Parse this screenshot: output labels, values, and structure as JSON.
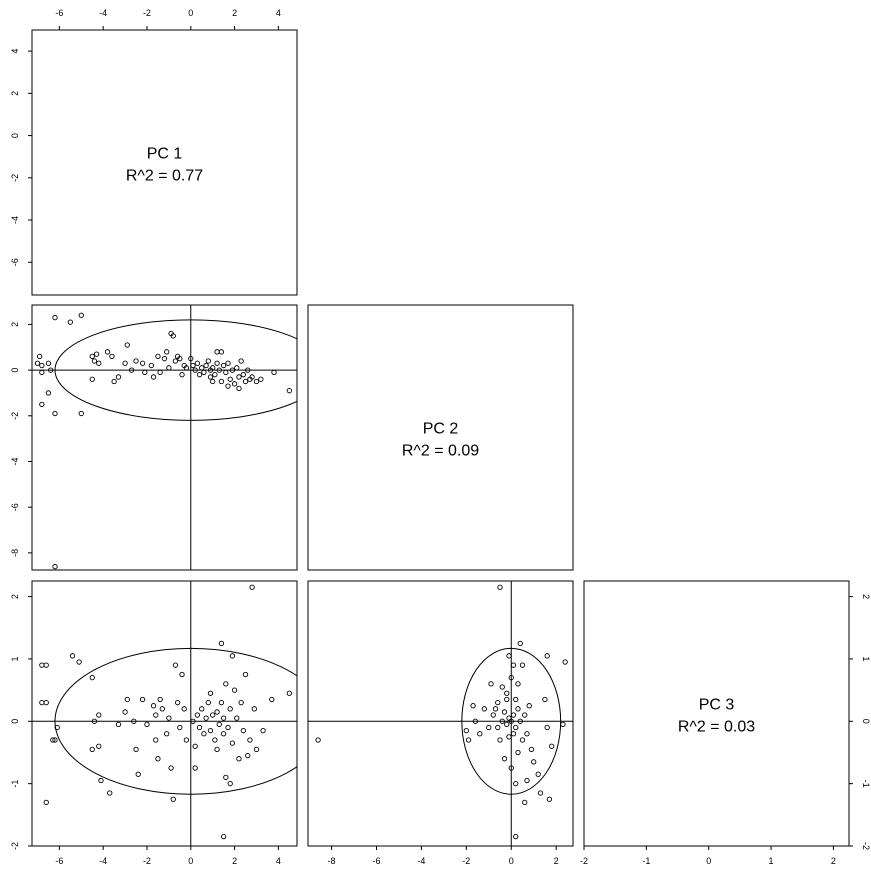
{
  "chart_data": {
    "type": "scatter",
    "title": "",
    "panels": {
      "diagonal": [
        {
          "name": "PC 1",
          "r2": "R^2 = 0.77"
        },
        {
          "name": "PC 2",
          "r2": "R^2 = 0.09"
        },
        {
          "name": "PC 3",
          "r2": "R^2 = 0.03"
        }
      ],
      "pc1_vs_pc2": {
        "x_axis": "PC 1",
        "y_axis": "PC 2",
        "xlim": [
          -7.0,
          4.8
        ],
        "ylim": [
          -8.7,
          2.8
        ],
        "ellipse": {
          "cx": 0,
          "cy": 0,
          "rx": 6.2,
          "ry": 2.2
        },
        "points": [
          [
            -7.0,
            0.3
          ],
          [
            -6.9,
            0.6
          ],
          [
            -6.8,
            0.2
          ],
          [
            -6.5,
            0.3
          ],
          [
            -6.8,
            -0.1
          ],
          [
            -6.5,
            -1.0
          ],
          [
            -6.4,
            0.0
          ],
          [
            -6.2,
            2.3
          ],
          [
            -6.2,
            -1.9
          ],
          [
            -5.5,
            2.1
          ],
          [
            -5.0,
            2.4
          ],
          [
            -5.0,
            -1.9
          ],
          [
            -6.8,
            -1.5
          ],
          [
            -6.2,
            -8.6
          ],
          [
            -4.5,
            0.6
          ],
          [
            -4.4,
            0.4
          ],
          [
            -4.3,
            0.7
          ],
          [
            -4.2,
            0.3
          ],
          [
            -4.5,
            -0.4
          ],
          [
            -3.8,
            0.8
          ],
          [
            -3.6,
            0.6
          ],
          [
            -3.5,
            -0.5
          ],
          [
            -3.3,
            -0.3
          ],
          [
            -3.0,
            0.3
          ],
          [
            -2.9,
            1.1
          ],
          [
            -2.7,
            0.0
          ],
          [
            -2.5,
            0.4
          ],
          [
            -2.2,
            0.3
          ],
          [
            -2.1,
            -0.1
          ],
          [
            -1.8,
            0.2
          ],
          [
            -1.7,
            -0.3
          ],
          [
            -1.5,
            0.6
          ],
          [
            -1.4,
            -0.1
          ],
          [
            -1.2,
            0.5
          ],
          [
            -1.1,
            0.8
          ],
          [
            -1.0,
            0.1
          ],
          [
            -0.9,
            1.6
          ],
          [
            -0.8,
            1.5
          ],
          [
            -0.7,
            0.4
          ],
          [
            -0.6,
            0.6
          ],
          [
            -0.5,
            0.5
          ],
          [
            -0.4,
            -0.2
          ],
          [
            -0.3,
            0.2
          ],
          [
            -0.2,
            0.1
          ],
          [
            0.0,
            0.5
          ],
          [
            0.1,
            0.2
          ],
          [
            0.2,
            0.0
          ],
          [
            0.3,
            0.3
          ],
          [
            0.4,
            -0.2
          ],
          [
            0.5,
            0.1
          ],
          [
            0.6,
            -0.1
          ],
          [
            0.7,
            0.2
          ],
          [
            0.8,
            0.4
          ],
          [
            0.9,
            -0.3
          ],
          [
            1.0,
            0.1
          ],
          [
            1.1,
            -0.2
          ],
          [
            1.2,
            0.3
          ],
          [
            1.3,
            0.0
          ],
          [
            1.4,
            -0.5
          ],
          [
            1.4,
            0.8
          ],
          [
            1.5,
            0.2
          ],
          [
            1.6,
            -0.1
          ],
          [
            1.7,
            0.3
          ],
          [
            1.8,
            -0.4
          ],
          [
            1.9,
            0.0
          ],
          [
            2.0,
            -0.6
          ],
          [
            2.1,
            0.1
          ],
          [
            2.2,
            -0.3
          ],
          [
            2.3,
            0.4
          ],
          [
            2.4,
            -0.2
          ],
          [
            2.5,
            -0.5
          ],
          [
            2.6,
            0.0
          ],
          [
            2.7,
            -0.4
          ],
          [
            2.8,
            -0.3
          ],
          [
            3.0,
            -0.5
          ],
          [
            3.2,
            -0.4
          ],
          [
            1.0,
            -0.5
          ],
          [
            1.2,
            0.8
          ],
          [
            0.9,
            0.0
          ],
          [
            1.7,
            -0.7
          ],
          [
            2.2,
            -0.8
          ],
          [
            3.8,
            -0.1
          ],
          [
            4.5,
            -0.9
          ]
        ]
      },
      "pc1_vs_pc3": {
        "x_axis": "PC 1",
        "y_axis": "PC 3",
        "xlim": [
          -7.2,
          4.8
        ],
        "ylim": [
          -2.0,
          2.3
        ],
        "ellipse": {
          "cx": 0,
          "cy": 0,
          "rx": 6.2,
          "ry": 1.17
        },
        "points": [
          [
            -6.8,
            0.9
          ],
          [
            -6.6,
            0.9
          ],
          [
            -6.8,
            0.3
          ],
          [
            -6.6,
            0.3
          ],
          [
            -6.3,
            -0.3
          ],
          [
            -6.2,
            -0.3
          ],
          [
            -6.1,
            -0.1
          ],
          [
            -6.6,
            -1.3
          ],
          [
            -5.4,
            1.05
          ],
          [
            -5.1,
            0.95
          ],
          [
            -4.5,
            0.7
          ],
          [
            -4.4,
            0.0
          ],
          [
            -4.5,
            -0.45
          ],
          [
            -4.2,
            0.1
          ],
          [
            -4.2,
            -0.4
          ],
          [
            -4.1,
            -0.95
          ],
          [
            -3.7,
            -1.15
          ],
          [
            -3.3,
            -0.05
          ],
          [
            -3.0,
            0.15
          ],
          [
            -2.9,
            0.35
          ],
          [
            -2.6,
            0.0
          ],
          [
            -2.5,
            -0.45
          ],
          [
            -2.4,
            -0.85
          ],
          [
            -2.2,
            0.35
          ],
          [
            -2.0,
            -0.05
          ],
          [
            -1.7,
            0.25
          ],
          [
            -1.6,
            0.1
          ],
          [
            -1.6,
            -0.3
          ],
          [
            -1.5,
            -0.6
          ],
          [
            -1.4,
            0.35
          ],
          [
            -1.3,
            0.2
          ],
          [
            -1.1,
            -0.2
          ],
          [
            -1.0,
            0.05
          ],
          [
            -0.9,
            -0.75
          ],
          [
            -0.8,
            -1.25
          ],
          [
            -0.7,
            0.9
          ],
          [
            -0.6,
            0.3
          ],
          [
            -0.5,
            -0.1
          ],
          [
            -0.4,
            0.75
          ],
          [
            -0.3,
            0.2
          ],
          [
            -0.2,
            -0.3
          ],
          [
            0.1,
            0.0
          ],
          [
            0.2,
            -0.4
          ],
          [
            0.3,
            0.1
          ],
          [
            0.4,
            -0.1
          ],
          [
            0.5,
            0.2
          ],
          [
            0.6,
            -0.2
          ],
          [
            0.7,
            0.05
          ],
          [
            0.8,
            0.3
          ],
          [
            0.9,
            -0.15
          ],
          [
            1.0,
            0.1
          ],
          [
            1.1,
            -0.3
          ],
          [
            1.2,
            0.15
          ],
          [
            1.3,
            -0.05
          ],
          [
            1.4,
            1.25
          ],
          [
            1.4,
            0.3
          ],
          [
            1.5,
            -0.2
          ],
          [
            1.5,
            0.05
          ],
          [
            1.6,
            0.6
          ],
          [
            1.7,
            -0.1
          ],
          [
            1.8,
            0.2
          ],
          [
            1.8,
            -1.0
          ],
          [
            1.9,
            -0.35
          ],
          [
            2.0,
            0.5
          ],
          [
            2.1,
            0.05
          ],
          [
            2.2,
            -0.6
          ],
          [
            2.3,
            0.3
          ],
          [
            2.4,
            -0.15
          ],
          [
            2.5,
            0.75
          ],
          [
            2.7,
            -0.3
          ],
          [
            2.8,
            2.15
          ],
          [
            2.9,
            0.2
          ],
          [
            3.0,
            -0.45
          ],
          [
            3.3,
            -0.15
          ],
          [
            3.7,
            0.35
          ],
          [
            4.5,
            0.45
          ],
          [
            1.5,
            -1.85
          ],
          [
            1.2,
            -0.45
          ],
          [
            0.9,
            0.45
          ],
          [
            2.6,
            -0.55
          ],
          [
            0.2,
            -0.75
          ],
          [
            1.9,
            1.05
          ],
          [
            1.6,
            -0.9
          ]
        ]
      },
      "pc2_vs_pc3": {
        "x_axis": "PC 2",
        "y_axis": "PC 3",
        "xlim": [
          -9.0,
          2.8
        ],
        "ylim": [
          -2.0,
          2.3
        ],
        "ellipse": {
          "cx": 0,
          "cy": 0,
          "rx": 2.2,
          "ry": 1.17
        },
        "points": [
          [
            -8.6,
            -0.3
          ],
          [
            -0.5,
            2.15
          ],
          [
            0.2,
            -1.85
          ],
          [
            2.4,
            0.95
          ],
          [
            2.3,
            -0.05
          ],
          [
            1.6,
            1.05
          ],
          [
            1.7,
            -1.25
          ],
          [
            1.3,
            -1.15
          ],
          [
            1.2,
            -0.85
          ],
          [
            1.0,
            -0.65
          ],
          [
            0.9,
            -0.45
          ],
          [
            0.7,
            -0.95
          ],
          [
            0.6,
            -1.3
          ],
          [
            0.5,
            0.9
          ],
          [
            0.4,
            1.25
          ],
          [
            0.3,
            0.6
          ],
          [
            -0.2,
            0.35
          ],
          [
            -0.4,
            0.55
          ],
          [
            -0.6,
            0.3
          ],
          [
            -0.8,
            0.1
          ],
          [
            -1.0,
            -0.1
          ],
          [
            -1.2,
            0.2
          ],
          [
            -1.4,
            -0.2
          ],
          [
            -1.6,
            0.0
          ],
          [
            -1.9,
            -0.3
          ],
          [
            -2.0,
            -0.15
          ],
          [
            -1.7,
            0.25
          ],
          [
            -0.9,
            0.6
          ],
          [
            1.5,
            0.35
          ],
          [
            1.6,
            -0.1
          ],
          [
            1.8,
            -0.4
          ],
          [
            0.2,
            -1.0
          ],
          [
            0.0,
            0.0
          ],
          [
            0.1,
            0.1
          ],
          [
            -0.1,
            0.05
          ],
          [
            0.2,
            -0.1
          ],
          [
            -0.2,
            -0.05
          ],
          [
            0.3,
            0.2
          ],
          [
            -0.3,
            0.15
          ],
          [
            0.1,
            -0.2
          ],
          [
            -0.1,
            -0.25
          ],
          [
            0.4,
            0.0
          ],
          [
            -0.4,
            0.0
          ],
          [
            0.2,
            0.35
          ],
          [
            -0.2,
            0.45
          ],
          [
            0.0,
            0.7
          ],
          [
            0.1,
            0.9
          ],
          [
            -0.1,
            1.05
          ],
          [
            0.5,
            -0.3
          ],
          [
            -0.5,
            -0.3
          ],
          [
            0.3,
            -0.5
          ],
          [
            -0.3,
            -0.6
          ],
          [
            0.0,
            -0.75
          ],
          [
            0.6,
            0.1
          ],
          [
            -0.6,
            -0.1
          ],
          [
            0.8,
            0.25
          ],
          [
            0.7,
            -0.2
          ],
          [
            -0.7,
            0.2
          ]
        ]
      }
    },
    "ticks": {
      "pc1": [
        "-6",
        "-4",
        "-2",
        "0",
        "2",
        "4"
      ],
      "pc2": [
        "-8",
        "-6",
        "-4",
        "-2",
        "0",
        "2"
      ],
      "pc3": [
        "-2",
        "-1",
        "0",
        "1",
        "2"
      ],
      "pc1_left": [
        "-6",
        "-4",
        "-2",
        "0",
        "2",
        "4"
      ],
      "pc2_left": [
        "-8",
        "-6",
        "-4",
        "-2",
        "0",
        "2"
      ],
      "pc3_left": [
        "-2",
        "-1",
        "0",
        "1",
        "2"
      ],
      "pc3_right": [
        "-2",
        "-1",
        "0",
        "1",
        "2"
      ],
      "pc2_bottom": [
        "-8",
        "-6",
        "-4",
        "-2",
        "0",
        "2"
      ],
      "pc3_bottom": [
        "-2",
        "-1",
        "0",
        "1",
        "2"
      ],
      "pc1_top": [
        "-6",
        "-4",
        "-2",
        "0",
        "2",
        "4"
      ]
    },
    "grid": false,
    "legend": "none"
  }
}
